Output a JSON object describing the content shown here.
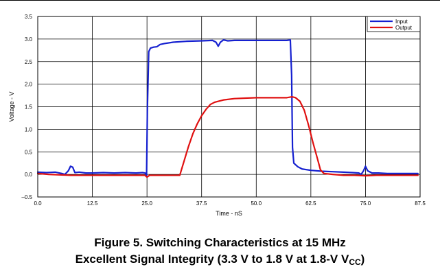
{
  "figure": {
    "caption_line1": "Figure 5. Switching Characteristics at 15 MHz",
    "caption_line2_prefix": "Excellent Signal Integrity (3.3 V to 1.8 V at 1.8-V V",
    "caption_line2_sub": "CC",
    "caption_line2_suffix": ")"
  },
  "chart_data": {
    "type": "line",
    "title": "",
    "xlabel": "Time - nS",
    "ylabel": "Voltage - V",
    "xlim": [
      0,
      87.5
    ],
    "ylim": [
      -0.5,
      3.5
    ],
    "xticks": [
      0,
      12.5,
      25,
      37.5,
      50,
      62.5,
      75,
      87.5
    ],
    "xtick_labels": [
      "0.0",
      "12.5",
      "25.0",
      "37.5",
      "50.0",
      "62.5",
      "75.0",
      "87.5"
    ],
    "yticks": [
      -0.5,
      0,
      0.5,
      1,
      1.5,
      2,
      2.5,
      3,
      3.5
    ],
    "ytick_labels": [
      "–0.5",
      "0.0",
      "0.5",
      "1.0",
      "1.5",
      "2.0",
      "2.5",
      "3.0",
      "3.5"
    ],
    "grid": true,
    "legend_position": "top-right",
    "series": [
      {
        "name": "Input",
        "color": "#1520d0",
        "points": [
          [
            0,
            0.05
          ],
          [
            2,
            0.04
          ],
          [
            4,
            0.05
          ],
          [
            5.5,
            0.02
          ],
          [
            6.2,
            0.0
          ],
          [
            7,
            0.08
          ],
          [
            7.5,
            0.18
          ],
          [
            8,
            0.16
          ],
          [
            8.5,
            0.04
          ],
          [
            9.5,
            0.05
          ],
          [
            11,
            0.03
          ],
          [
            12.5,
            0.03
          ],
          [
            15,
            0.04
          ],
          [
            17.5,
            0.03
          ],
          [
            20,
            0.04
          ],
          [
            22.5,
            0.03
          ],
          [
            24,
            0.04
          ],
          [
            24.6,
            0.03
          ],
          [
            24.9,
            -0.03
          ],
          [
            25.1,
            1.5
          ],
          [
            25.4,
            2.72
          ],
          [
            25.8,
            2.8
          ],
          [
            26.5,
            2.82
          ],
          [
            27.3,
            2.83
          ],
          [
            28,
            2.88
          ],
          [
            29,
            2.9
          ],
          [
            31,
            2.93
          ],
          [
            34,
            2.95
          ],
          [
            37.5,
            2.96
          ],
          [
            40,
            2.97
          ],
          [
            40.8,
            2.93
          ],
          [
            41.3,
            2.84
          ],
          [
            41.8,
            2.93
          ],
          [
            42.5,
            2.98
          ],
          [
            43.5,
            2.96
          ],
          [
            45,
            2.97
          ],
          [
            47.5,
            2.97
          ],
          [
            50,
            2.97
          ],
          [
            52.5,
            2.97
          ],
          [
            55,
            2.97
          ],
          [
            57,
            2.97
          ],
          [
            57.8,
            2.98
          ],
          [
            58.1,
            2.2
          ],
          [
            58.3,
            0.6
          ],
          [
            58.6,
            0.25
          ],
          [
            59.5,
            0.17
          ],
          [
            60.5,
            0.12
          ],
          [
            62.5,
            0.09
          ],
          [
            65,
            0.07
          ],
          [
            67.5,
            0.06
          ],
          [
            70,
            0.05
          ],
          [
            72,
            0.04
          ],
          [
            73.5,
            0.03
          ],
          [
            74,
            0.0
          ],
          [
            74.5,
            0.07
          ],
          [
            75,
            0.18
          ],
          [
            75.5,
            0.08
          ],
          [
            76.5,
            0.03
          ],
          [
            78,
            0.03
          ],
          [
            80,
            0.02
          ],
          [
            82.5,
            0.02
          ],
          [
            85,
            0.02
          ],
          [
            87,
            0.02
          ]
        ]
      },
      {
        "name": "Output",
        "color": "#e01010",
        "points": [
          [
            0,
            0.02
          ],
          [
            2.5,
            0.0
          ],
          [
            5,
            -0.01
          ],
          [
            7.5,
            -0.02
          ],
          [
            10,
            -0.02
          ],
          [
            12.5,
            -0.02
          ],
          [
            15,
            -0.02
          ],
          [
            17.5,
            -0.02
          ],
          [
            20,
            -0.02
          ],
          [
            22.5,
            -0.02
          ],
          [
            24.5,
            -0.02
          ],
          [
            25,
            -0.06
          ],
          [
            25.6,
            -0.02
          ],
          [
            27.5,
            -0.02
          ],
          [
            30,
            -0.02
          ],
          [
            31.5,
            -0.02
          ],
          [
            32.5,
            -0.02
          ],
          [
            33.5,
            0.3
          ],
          [
            34.5,
            0.62
          ],
          [
            35.5,
            0.9
          ],
          [
            36.5,
            1.12
          ],
          [
            37.5,
            1.3
          ],
          [
            38.5,
            1.44
          ],
          [
            39.5,
            1.55
          ],
          [
            40.5,
            1.6
          ],
          [
            42.5,
            1.65
          ],
          [
            45,
            1.68
          ],
          [
            47.5,
            1.69
          ],
          [
            50,
            1.7
          ],
          [
            52.5,
            1.7
          ],
          [
            55,
            1.7
          ],
          [
            57,
            1.7
          ],
          [
            58.2,
            1.72
          ],
          [
            59,
            1.7
          ],
          [
            60,
            1.62
          ],
          [
            61,
            1.42
          ],
          [
            62,
            1.08
          ],
          [
            63,
            0.7
          ],
          [
            64,
            0.35
          ],
          [
            64.7,
            0.1
          ],
          [
            65.5,
            0.02
          ],
          [
            67.5,
            0.0
          ],
          [
            70,
            -0.02
          ],
          [
            72.5,
            -0.02
          ],
          [
            75,
            -0.03
          ],
          [
            77.5,
            -0.02
          ],
          [
            80,
            -0.02
          ],
          [
            82.5,
            -0.02
          ],
          [
            85,
            -0.02
          ],
          [
            87,
            -0.02
          ]
        ]
      }
    ]
  }
}
